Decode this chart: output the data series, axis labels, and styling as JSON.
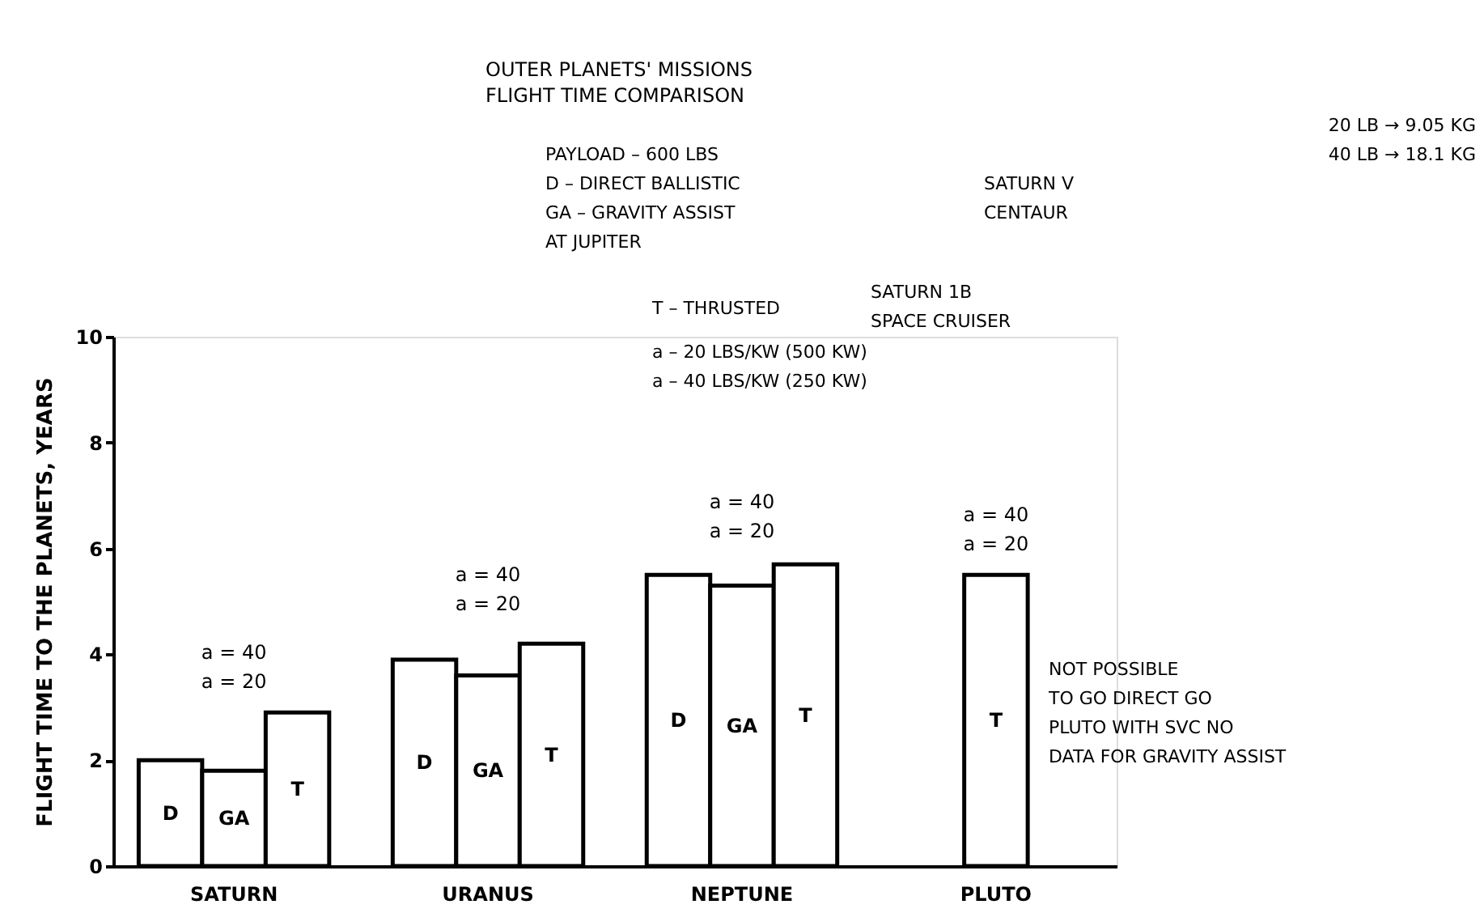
{
  "chart_data": {
    "type": "bar",
    "title": "OUTER PLANETS' MISSIONS\nFLIGHT TIME COMPARISON",
    "ylabel": "FLIGHT TIME TO THE PLANETS, YEARS",
    "categories": [
      "SATURN",
      "URANUS",
      "NEPTUNE",
      "PLUTO"
    ],
    "series": [
      {
        "name": "D",
        "color": "#ffffff",
        "values": [
          2.0,
          3.9,
          5.5,
          null
        ]
      },
      {
        "name": "GA",
        "color": "#ffffff",
        "values": [
          1.8,
          3.6,
          5.3,
          null
        ]
      },
      {
        "name": "T",
        "color": "#ffffff",
        "values": [
          2.9,
          4.2,
          5.7,
          5.5
        ]
      }
    ],
    "ylim": [
      0,
      10
    ],
    "yticks": [
      0,
      2,
      4,
      6,
      8,
      10
    ],
    "grid": false,
    "legend": false,
    "annotations": [
      "a = 40\na = 20",
      "a = 40\na = 20",
      "a = 40\na = 20",
      "a = 40\na = 20",
      "20 LB → 9.05 KG\n40 LB → 18.1 KG",
      "PAYLOAD – 600 LBS\nD – DIRECT BALLISTIC\nGA – GRAVITY ASSIST\nAT JUPITER",
      "SATURN V\nCENTAUR",
      "T – THRUSTED",
      "SATURN 1B\nSPACE CRUISER",
      "a – 20 LBS/KW (500 KW)\na – 40 LBS/KW (250 KW)",
      "NOT POSSIBLE\nTO GO DIRECT GO\nPLUTO WITH SVC NO\nDATA FOR GRAVITY ASSIST"
    ]
  }
}
